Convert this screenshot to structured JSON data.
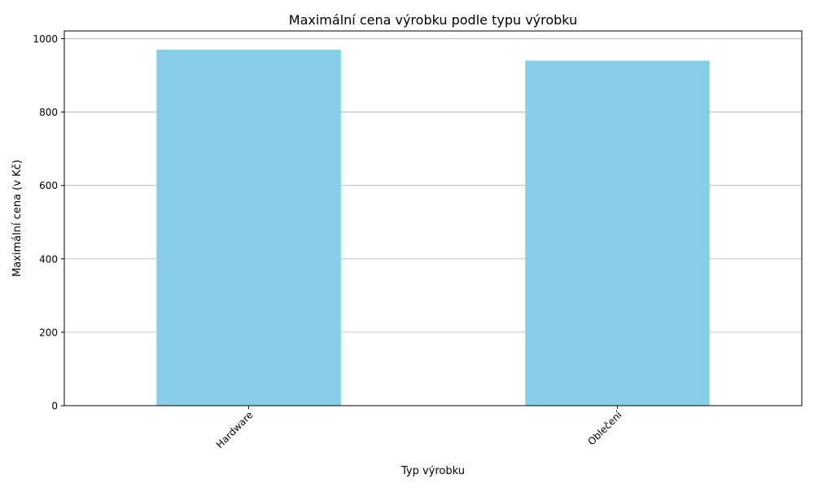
{
  "chart_data": {
    "type": "bar",
    "title": "Maximální cena výrobku podle typu výrobku",
    "xlabel": "Typ výrobku",
    "ylabel": "Maximální cena (v Kč)",
    "categories": [
      "Hardware",
      "Oblečení"
    ],
    "values": [
      970,
      940
    ],
    "ylim": [
      0,
      1021
    ],
    "yticks": [
      0,
      200,
      400,
      600,
      800,
      1000
    ],
    "grid": "y",
    "legend": "none",
    "bar_color": "#87CEEB",
    "grid_color": "#b0b0b0",
    "axis_color": "#000000"
  }
}
